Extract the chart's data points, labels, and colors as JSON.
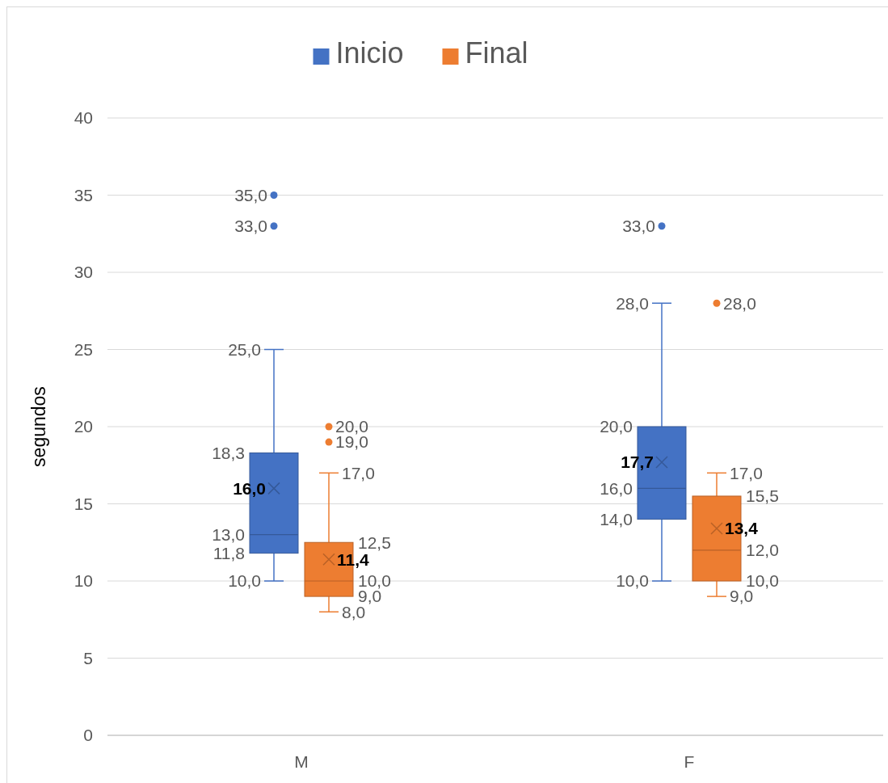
{
  "chart_data": {
    "type": "box",
    "ylabel": "segundos",
    "categories": [
      "M",
      "F"
    ],
    "ylim": [
      0,
      40
    ],
    "yticks": [
      0,
      5,
      10,
      15,
      20,
      25,
      30,
      35,
      40
    ],
    "grid": "y",
    "legend": "top",
    "series": [
      {
        "name": "Inicio",
        "color": "#4472c4",
        "boxes": [
          {
            "low": 10,
            "q1": 11.8,
            "median": 13,
            "q3": 18.3,
            "high": 25,
            "mean": 16,
            "outliers": [
              33,
              35
            ]
          },
          {
            "low": 10,
            "q1": 14,
            "median": 16,
            "q3": 20,
            "high": 28,
            "mean": 17.7,
            "outliers": [
              33
            ]
          }
        ]
      },
      {
        "name": "Final",
        "color": "#ed7d31",
        "boxes": [
          {
            "low": 8,
            "q1": 9,
            "median": 10,
            "q3": 12.5,
            "high": 17,
            "mean": 11.4,
            "outliers": [
              19,
              20
            ]
          },
          {
            "low": 9,
            "q1": 10,
            "median": 12,
            "q3": 15.5,
            "high": 17,
            "mean": 13.4,
            "outliers": [
              28
            ]
          }
        ]
      }
    ],
    "annotations": [
      "33,0",
      "35,0",
      "25,0",
      "18,3",
      "16,0",
      "13,0",
      "11,8",
      "10,0",
      "19,0",
      "20,0",
      "17,0",
      "12,5",
      "11,4",
      "10,0",
      "9,0",
      "8,0",
      "33,0",
      "28,0",
      "20,0",
      "17,7",
      "16,0",
      "14,0",
      "10,0",
      "28,0",
      "17,0",
      "15,5",
      "13,4",
      "12,0",
      "10,0",
      "9,0"
    ]
  }
}
